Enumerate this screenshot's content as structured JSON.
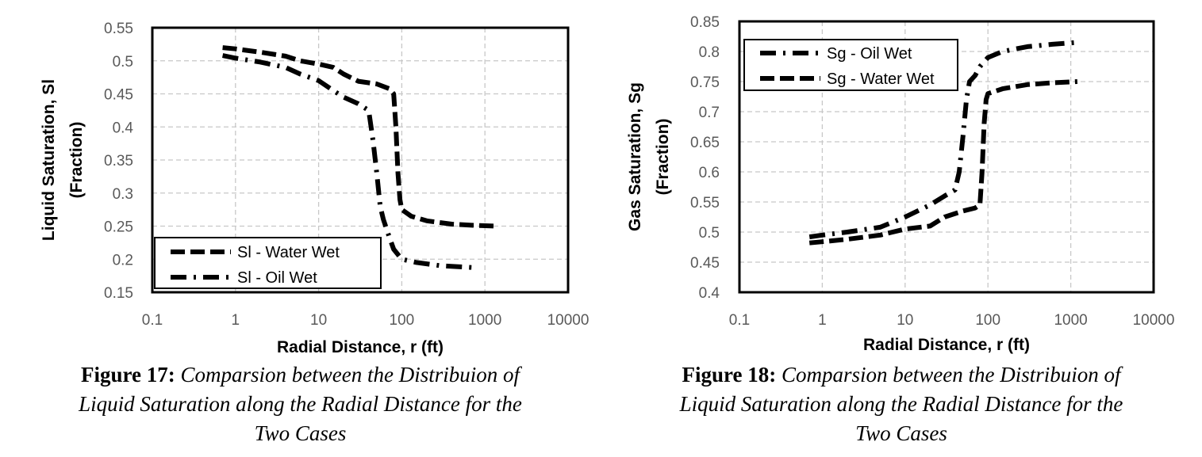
{
  "figures": [
    {
      "id": "fig17",
      "caption": {
        "label": "Figure 17:",
        "line1": "Comparsion between the Distribuion of",
        "line2": "Liquid Saturation along the Radial Distance for the",
        "line3": "Two Cases"
      }
    },
    {
      "id": "fig18",
      "caption": {
        "label": "Figure 18:",
        "line1": "Comparsion between the Distribuion of",
        "line2": "Liquid Saturation along the Radial Distance for the",
        "line3": "Two Cases"
      }
    }
  ],
  "chart_data": [
    {
      "type": "line",
      "xscale": "log",
      "title": "",
      "xlabel": "Radial Distance, r (ft)",
      "ylabel_lines": [
        "Liquid Saturation, Sl",
        "(Fraction)"
      ],
      "xlim": [
        0.1,
        10000
      ],
      "ylim": [
        0.15,
        0.55
      ],
      "x_ticks": [
        0.1,
        1,
        10,
        100,
        1000,
        10000
      ],
      "x_tick_labels": [
        "0.1",
        "1",
        "10",
        "100",
        "1000",
        "10000"
      ],
      "y_ticks": [
        0.15,
        0.2,
        0.25,
        0.3,
        0.35,
        0.4,
        0.45,
        0.5,
        0.55
      ],
      "y_tick_labels": [
        "0.15",
        "0.2",
        "0.25",
        "0.3",
        "0.35",
        "0.4",
        "0.45",
        "0.5",
        "0.55"
      ],
      "grid": true,
      "legend_position": "bottom-left",
      "series": [
        {
          "name": "Sl - Water Wet",
          "style": "dashed",
          "x": [
            0.7,
            1,
            2,
            4,
            6,
            10,
            15,
            20,
            30,
            50,
            70,
            80,
            85,
            90,
            95,
            100,
            130,
            200,
            400,
            800,
            1400
          ],
          "y": [
            0.52,
            0.518,
            0.513,
            0.507,
            0.5,
            0.495,
            0.49,
            0.48,
            0.469,
            0.465,
            0.458,
            0.45,
            0.4,
            0.33,
            0.29,
            0.275,
            0.265,
            0.258,
            0.253,
            0.251,
            0.25
          ]
        },
        {
          "name": "Sl - Oil Wet",
          "style": "dash-dot",
          "x": [
            0.7,
            1,
            2,
            4,
            6,
            10,
            15,
            20,
            30,
            40,
            45,
            50,
            55,
            60,
            70,
            80,
            100,
            150,
            300,
            600,
            800
          ],
          "y": [
            0.508,
            0.504,
            0.498,
            0.49,
            0.48,
            0.47,
            0.455,
            0.445,
            0.435,
            0.425,
            0.38,
            0.33,
            0.28,
            0.26,
            0.235,
            0.215,
            0.2,
            0.195,
            0.19,
            0.188,
            0.187
          ]
        }
      ]
    },
    {
      "type": "line",
      "xscale": "log",
      "title": "",
      "xlabel": "Radial Distance, r (ft)",
      "ylabel_lines": [
        "Gas Saturation, Sg",
        "(Fraction)"
      ],
      "xlim": [
        0.1,
        10000
      ],
      "ylim": [
        0.4,
        0.85
      ],
      "x_ticks": [
        0.1,
        1,
        10,
        100,
        1000,
        10000
      ],
      "x_tick_labels": [
        "0.1",
        "1",
        "10",
        "100",
        "1000",
        "10000"
      ],
      "y_ticks": [
        0.4,
        0.45,
        0.5,
        0.55,
        0.6,
        0.65,
        0.7,
        0.75,
        0.8,
        0.85
      ],
      "y_tick_labels": [
        "0.4",
        "0.45",
        "0.5",
        "0.55",
        "0.6",
        "0.65",
        "0.7",
        "0.75",
        "0.8",
        "0.85"
      ],
      "grid": true,
      "legend_position": "top-left",
      "series": [
        {
          "name": "Sg - Oil Wet",
          "style": "dash-dot",
          "x": [
            0.7,
            1,
            2,
            5,
            10,
            20,
            30,
            40,
            45,
            50,
            55,
            60,
            70,
            80,
            100,
            150,
            300,
            600,
            1200
          ],
          "y": [
            0.492,
            0.495,
            0.5,
            0.508,
            0.525,
            0.545,
            0.56,
            0.57,
            0.6,
            0.66,
            0.72,
            0.75,
            0.76,
            0.775,
            0.79,
            0.8,
            0.808,
            0.812,
            0.815
          ]
        },
        {
          "name": "Sg - Water Wet",
          "style": "dashed",
          "x": [
            0.7,
            1,
            2,
            5,
            10,
            20,
            30,
            50,
            70,
            80,
            85,
            90,
            95,
            100,
            150,
            300,
            600,
            1200
          ],
          "y": [
            0.482,
            0.484,
            0.488,
            0.495,
            0.505,
            0.51,
            0.525,
            0.535,
            0.54,
            0.545,
            0.6,
            0.68,
            0.72,
            0.73,
            0.738,
            0.745,
            0.748,
            0.75
          ]
        }
      ]
    }
  ]
}
